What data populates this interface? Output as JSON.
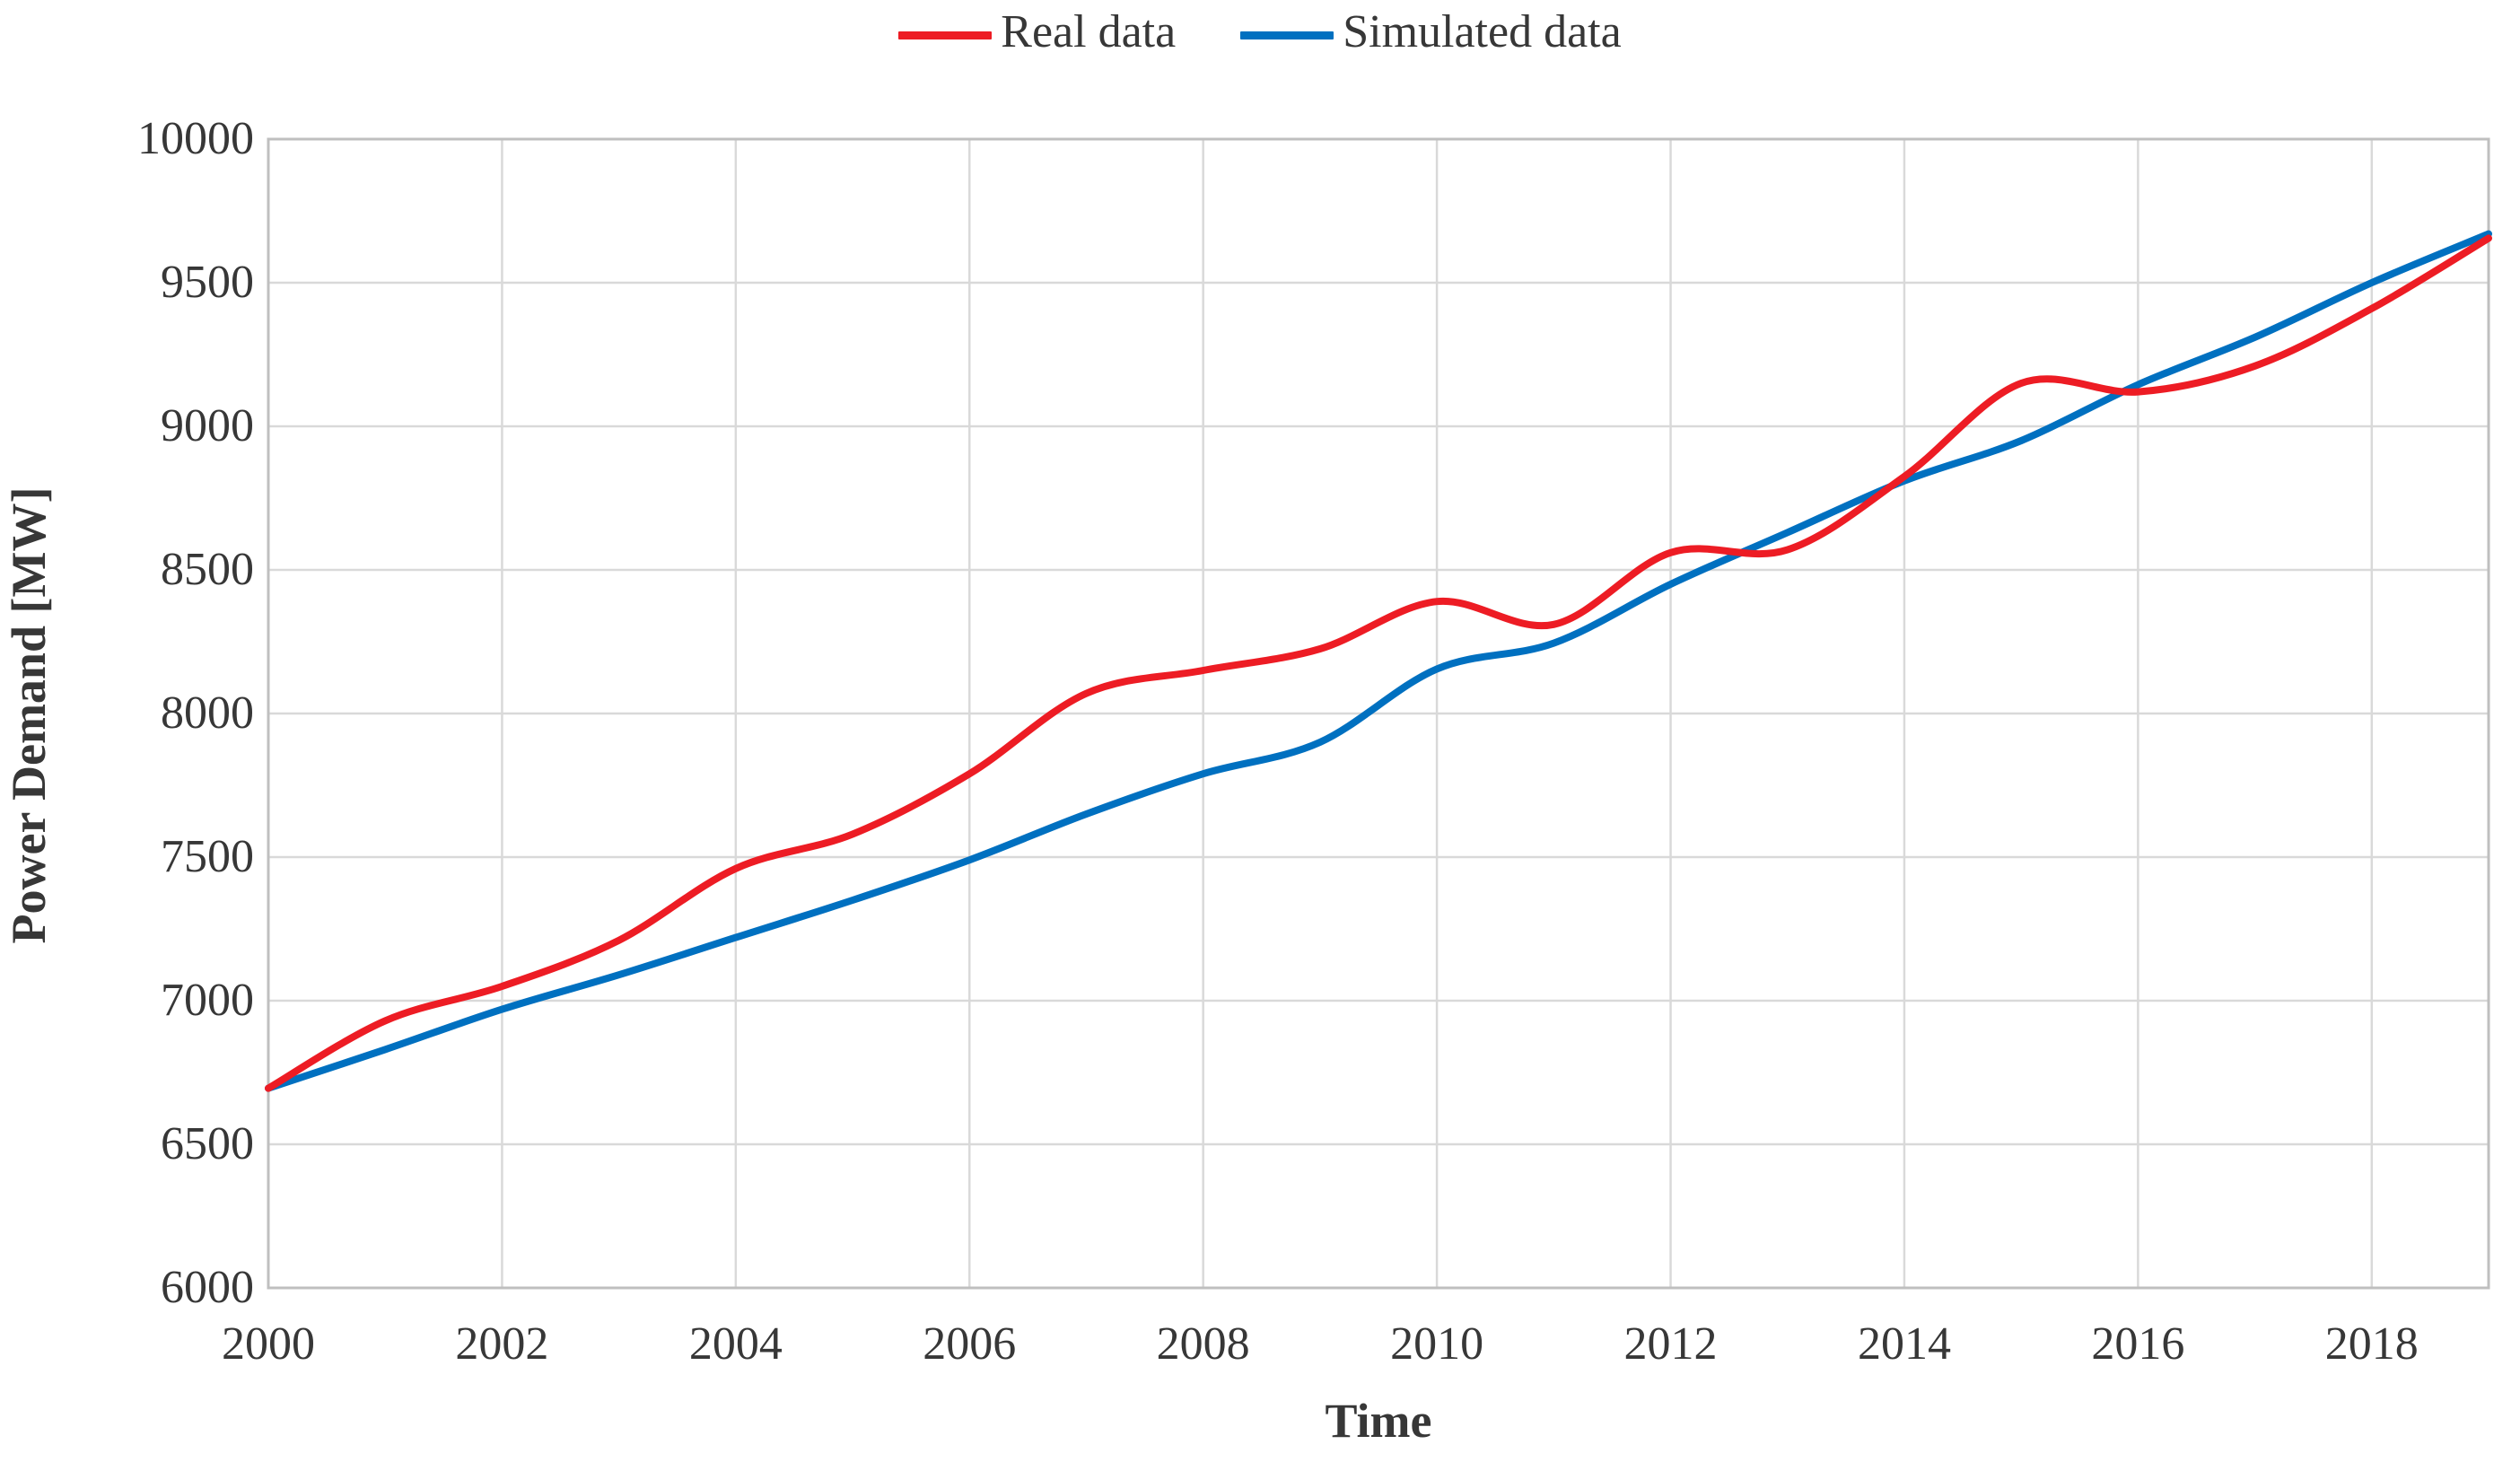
{
  "chart_data": {
    "type": "line",
    "title": "",
    "xlabel": "Time",
    "ylabel": "Power Demand [MW]",
    "x_range": [
      2000,
      2019
    ],
    "y_range": [
      6000,
      10000
    ],
    "x_ticks": [
      2000,
      2002,
      2004,
      2006,
      2008,
      2010,
      2012,
      2014,
      2016,
      2018
    ],
    "y_ticks": [
      6000,
      6500,
      7000,
      7500,
      8000,
      8500,
      9000,
      9500,
      10000
    ],
    "grid": true,
    "legend_position": "top-center",
    "x": [
      2000,
      2001,
      2002,
      2003,
      2004,
      2005,
      2006,
      2007,
      2008,
      2009,
      2010,
      2011,
      2012,
      2013,
      2014,
      2015,
      2016,
      2017,
      2018,
      2019
    ],
    "series": [
      {
        "name": "Real data",
        "color": "#ED1C24",
        "values": [
          6695,
          6930,
          7050,
          7210,
          7460,
          7580,
          7790,
          8070,
          8150,
          8225,
          8390,
          8310,
          8560,
          8570,
          8825,
          9150,
          9120,
          9210,
          9410,
          9655
        ]
      },
      {
        "name": "Simulated data",
        "color": "#0070C0",
        "values": [
          6695,
          6830,
          6970,
          7090,
          7220,
          7350,
          7490,
          7650,
          7790,
          7900,
          8155,
          8245,
          8450,
          8630,
          8810,
          8950,
          9145,
          9310,
          9500,
          9670
        ]
      }
    ]
  },
  "legend": {
    "real_label": "Real data",
    "simulated_label": "Simulated data"
  },
  "axes": {
    "x_title": "Time",
    "y_title": "Power Demand [MW]"
  },
  "colors": {
    "real_line": "#ED1C24",
    "simulated_line": "#0070C0",
    "gridline": "#D9D9D9",
    "plot_border": "#BFBFBF",
    "text": "#373737",
    "background": "#FFFFFF"
  }
}
